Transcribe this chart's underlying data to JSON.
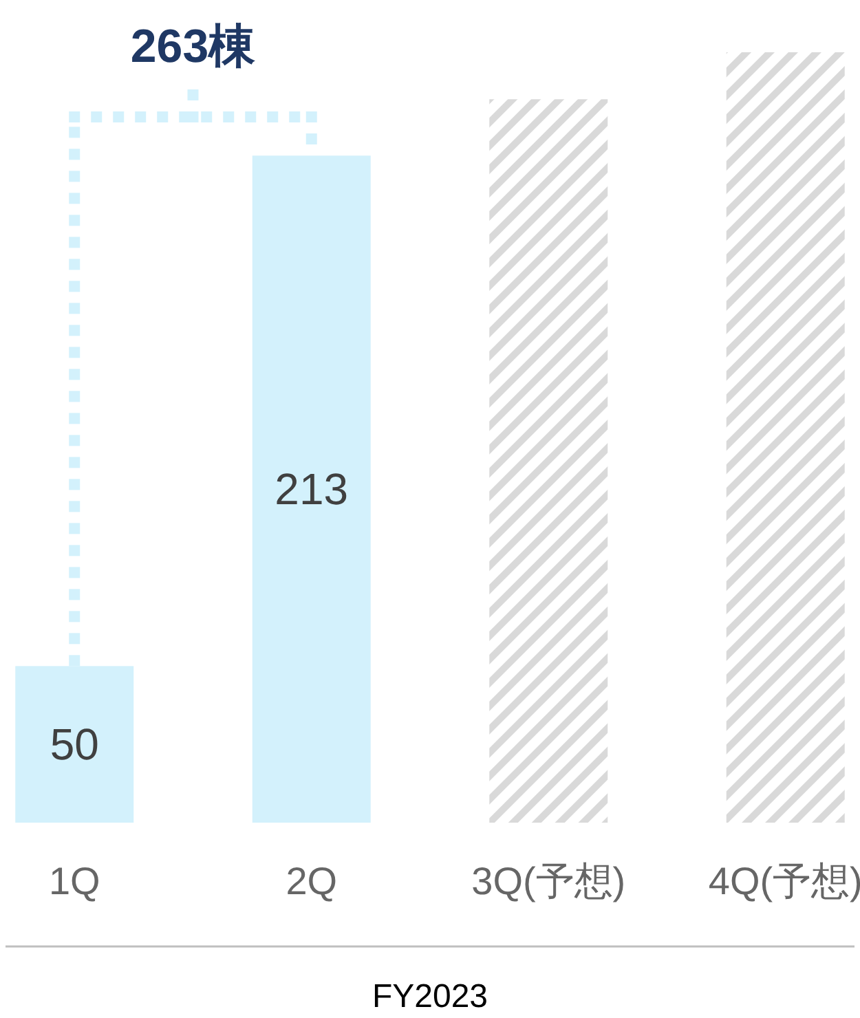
{
  "chart_data": {
    "type": "bar",
    "categories": [
      "1Q",
      "2Q",
      "3Q(予想)",
      "4Q(予想)"
    ],
    "series": [
      {
        "color": "#d3f1fc",
        "values": [
          50,
          213,
          null,
          null
        ],
        "value_labels": [
          "50",
          "213",
          null,
          null
        ]
      },
      {
        "color": "#d9d9d9",
        "values": [
          null,
          null,
          231,
          246
        ]
      }
    ],
    "ylim": [
      0,
      246
    ],
    "tick_labels": "x",
    "annotations": [
      "263棟"
    ],
    "xlabel": "FY2023"
  }
}
